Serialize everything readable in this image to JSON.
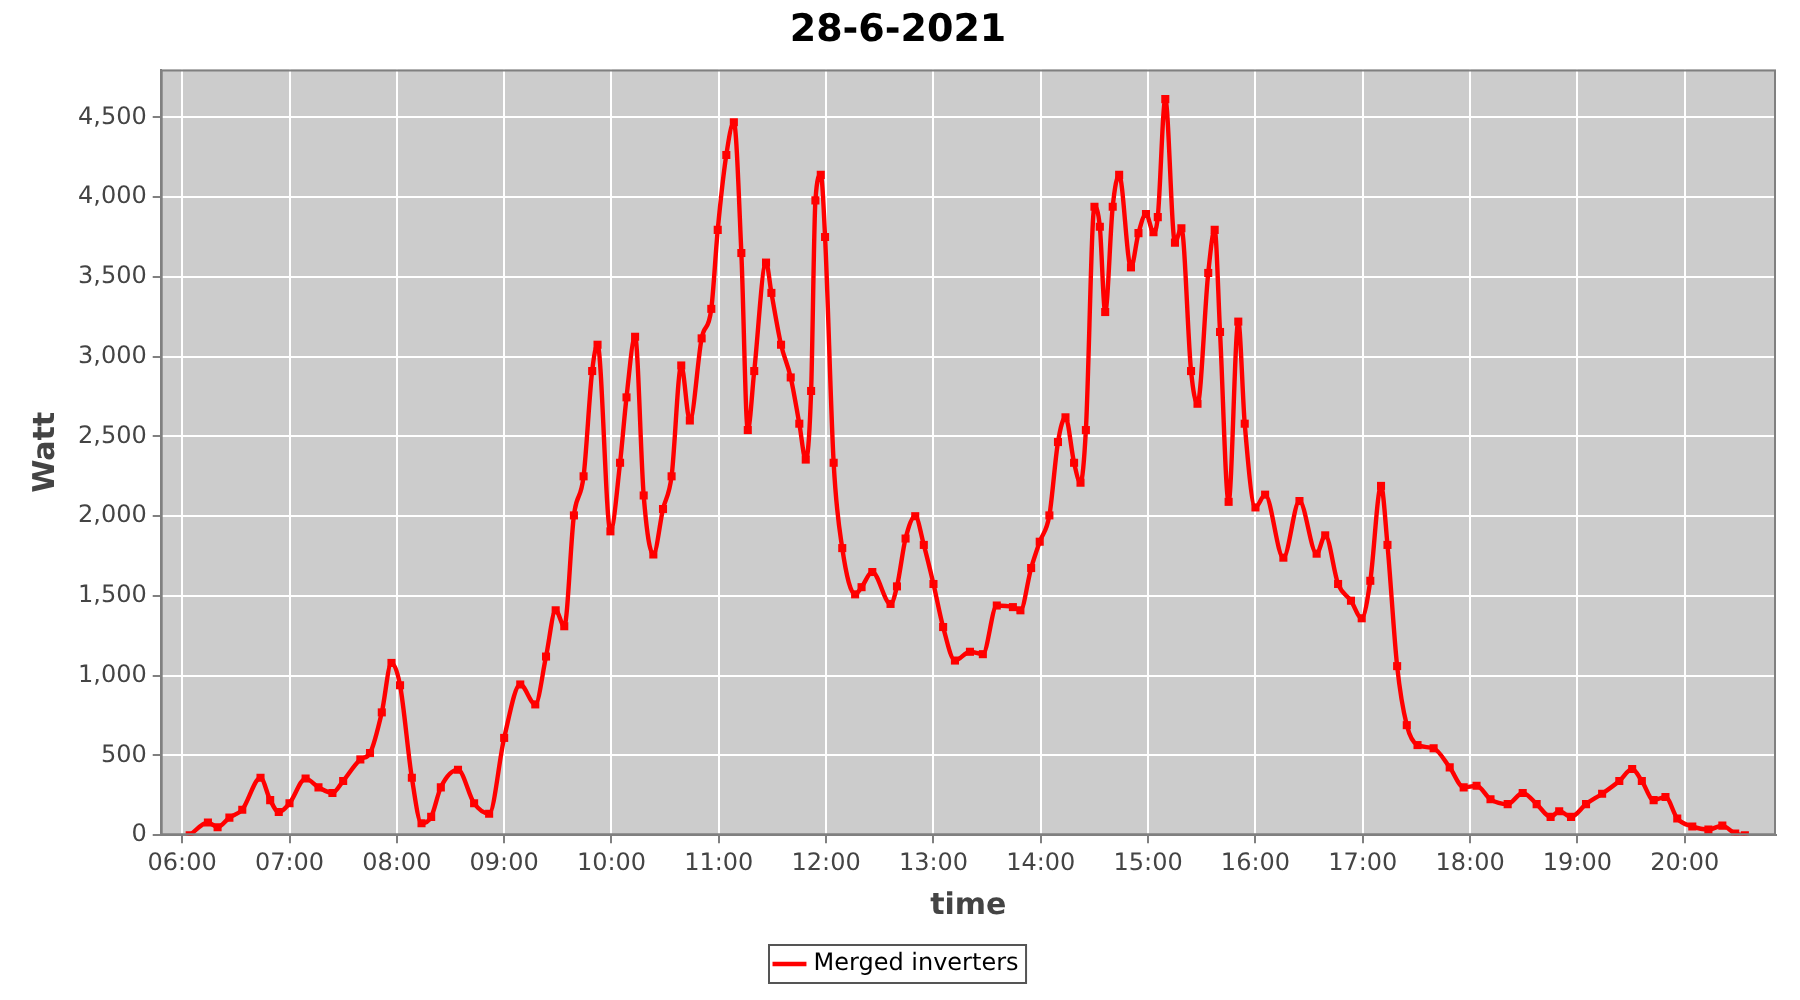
{
  "chart_data": {
    "type": "line",
    "title": "28-6-2021",
    "xlabel": "time",
    "ylabel": "Watt",
    "xlim": [
      5.8,
      20.85
    ],
    "xticks": [
      {
        "value": 6,
        "label": "06:00"
      },
      {
        "value": 7,
        "label": "07:00"
      },
      {
        "value": 8,
        "label": "08:00"
      },
      {
        "value": 9,
        "label": "09:00"
      },
      {
        "value": 10,
        "label": "10:00"
      },
      {
        "value": 11,
        "label": "11:00"
      },
      {
        "value": 12,
        "label": "12:00"
      },
      {
        "value": 13,
        "label": "13:00"
      },
      {
        "value": 14,
        "label": "14:00"
      },
      {
        "value": 15,
        "label": "15:00"
      },
      {
        "value": 16,
        "label": "16:00"
      },
      {
        "value": 17,
        "label": "17:00"
      },
      {
        "value": 18,
        "label": "18:00"
      },
      {
        "value": 19,
        "label": "19:00"
      },
      {
        "value": 20,
        "label": "20:00"
      }
    ],
    "ylim": [
      0,
      4800
    ],
    "yticks": [
      0,
      500,
      {
        "value": 1000,
        "label": "1,000"
      },
      {
        "value": 1500,
        "label": "1,500"
      },
      {
        "value": 2000,
        "label": "2,000"
      },
      {
        "value": 2500,
        "label": "2,500"
      },
      {
        "value": 3000,
        "label": "3,000"
      },
      {
        "value": 3500,
        "label": "3,500"
      },
      {
        "value": 4000,
        "label": "4,000"
      },
      {
        "value": 4500,
        "label": "4,500"
      }
    ],
    "grid": true,
    "legend": "bottom",
    "marker": "square",
    "line_style": "solid",
    "x": [
      6.07,
      6.24,
      6.33,
      6.44,
      6.56,
      6.73,
      6.82,
      6.9,
      7.0,
      7.15,
      7.27,
      7.4,
      7.5,
      7.66,
      7.75,
      7.86,
      7.95,
      8.03,
      8.14,
      8.23,
      8.32,
      8.41,
      8.57,
      8.72,
      8.86,
      9.0,
      9.15,
      9.29,
      9.39,
      9.48,
      9.56,
      9.65,
      9.74,
      9.82,
      9.87,
      9.99,
      10.08,
      10.14,
      10.22,
      10.3,
      10.39,
      10.48,
      10.56,
      10.65,
      10.73,
      10.84,
      10.93,
      10.99,
      11.07,
      11.14,
      11.21,
      11.27,
      11.33,
      11.44,
      11.49,
      11.58,
      11.67,
      11.75,
      11.81,
      11.86,
      11.9,
      11.95,
      11.99,
      12.07,
      12.15,
      12.27,
      12.33,
      12.43,
      12.6,
      12.66,
      12.74,
      12.83,
      12.91,
      13.0,
      13.09,
      13.2,
      13.34,
      13.46,
      13.59,
      13.74,
      13.81,
      13.91,
      13.99,
      14.08,
      14.16,
      14.23,
      14.31,
      14.37,
      14.42,
      14.5,
      14.55,
      14.6,
      14.67,
      14.73,
      14.84,
      14.91,
      14.98,
      15.05,
      15.09,
      15.16,
      15.25,
      15.31,
      15.4,
      15.46,
      15.56,
      15.62,
      15.67,
      15.75,
      15.84,
      15.9,
      16.0,
      16.09,
      16.26,
      16.41,
      16.57,
      16.65,
      16.77,
      16.89,
      16.99,
      17.07,
      17.17,
      17.23,
      17.32,
      17.41,
      17.51,
      17.66,
      17.81,
      17.94,
      18.06,
      18.19,
      18.35,
      18.49,
      18.62,
      18.75,
      18.83,
      18.94,
      19.08,
      19.23,
      19.39,
      19.51,
      19.6,
      19.71,
      19.82,
      19.93,
      20.07,
      20.22,
      20.35,
      20.47,
      20.56
    ],
    "series": [
      {
        "name": "Merged inverters",
        "color": "#ff0000",
        "values": [
          0,
          80,
          50,
          110,
          160,
          360,
          220,
          145,
          200,
          355,
          300,
          265,
          340,
          475,
          515,
          770,
          1080,
          940,
          360,
          75,
          115,
          300,
          410,
          200,
          135,
          610,
          945,
          820,
          1120,
          1410,
          1310,
          2005,
          2250,
          2910,
          3075,
          1905,
          2335,
          2745,
          3125,
          2130,
          1760,
          2045,
          2250,
          2945,
          2600,
          3115,
          3300,
          3795,
          4265,
          4470,
          3650,
          2540,
          2910,
          3590,
          3400,
          3075,
          2870,
          2580,
          2355,
          2785,
          3980,
          4140,
          3750,
          2335,
          1800,
          1510,
          1555,
          1650,
          1450,
          1560,
          1860,
          2000,
          1820,
          1575,
          1305,
          1095,
          1150,
          1135,
          1440,
          1430,
          1410,
          1675,
          1840,
          2005,
          2465,
          2620,
          2335,
          2210,
          2540,
          3940,
          3815,
          3280,
          3940,
          4140,
          3560,
          3775,
          3895,
          3780,
          3875,
          4615,
          3715,
          3805,
          2910,
          2705,
          3525,
          3795,
          3155,
          2090,
          3220,
          2580,
          2055,
          2135,
          1740,
          2095,
          1765,
          1880,
          1575,
          1470,
          1360,
          1595,
          2190,
          1820,
          1060,
          690,
          565,
          545,
          425,
          300,
          310,
          225,
          195,
          265,
          195,
          115,
          150,
          115,
          195,
          260,
          340,
          415,
          340,
          220,
          240,
          105,
          55,
          35,
          60,
          10,
          0
        ]
      }
    ]
  }
}
